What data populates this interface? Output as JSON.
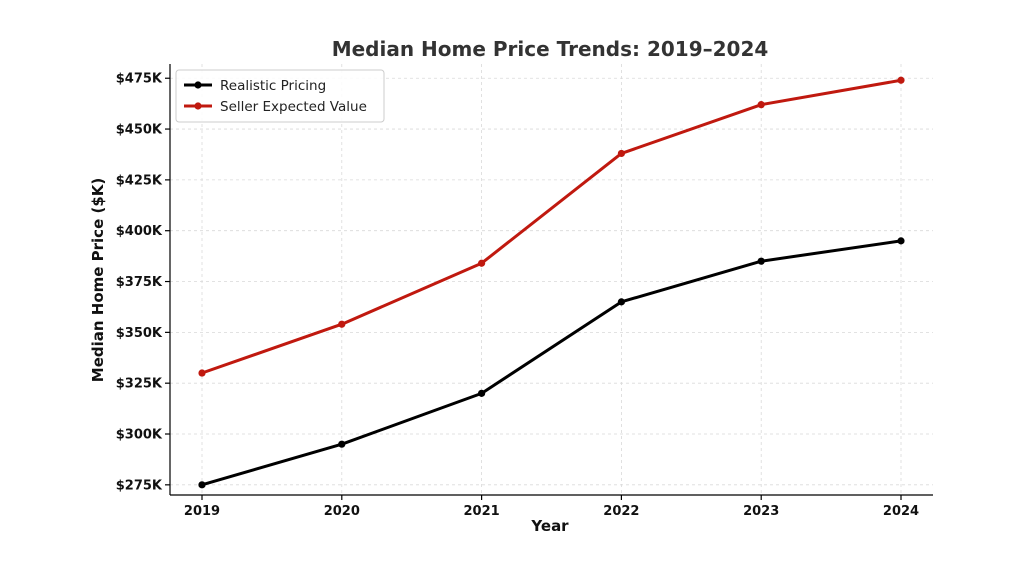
{
  "chart_data": {
    "type": "line",
    "title": "Median Home Price Trends: 2019–2024",
    "xlabel": "Year",
    "ylabel": "Median Home Price ($K)",
    "x": [
      "2019",
      "2020",
      "2021",
      "2022",
      "2023",
      "2024"
    ],
    "ylim": [
      270,
      482
    ],
    "y_ticks": [
      275,
      300,
      325,
      350,
      375,
      400,
      425,
      450,
      475
    ],
    "y_tick_labels": [
      "$275K",
      "$300K",
      "$325K",
      "$350K",
      "$375K",
      "$400K",
      "$425K",
      "$450K",
      "$475K"
    ],
    "grid": true,
    "legend_position": "top-left",
    "series": [
      {
        "name": "Realistic Pricing",
        "color": "#000000",
        "values": [
          275,
          295,
          320,
          365,
          385,
          395
        ]
      },
      {
        "name": "Seller Expected Value",
        "color": "#c0190f",
        "values": [
          330,
          354,
          384,
          438,
          462,
          474
        ]
      }
    ]
  }
}
